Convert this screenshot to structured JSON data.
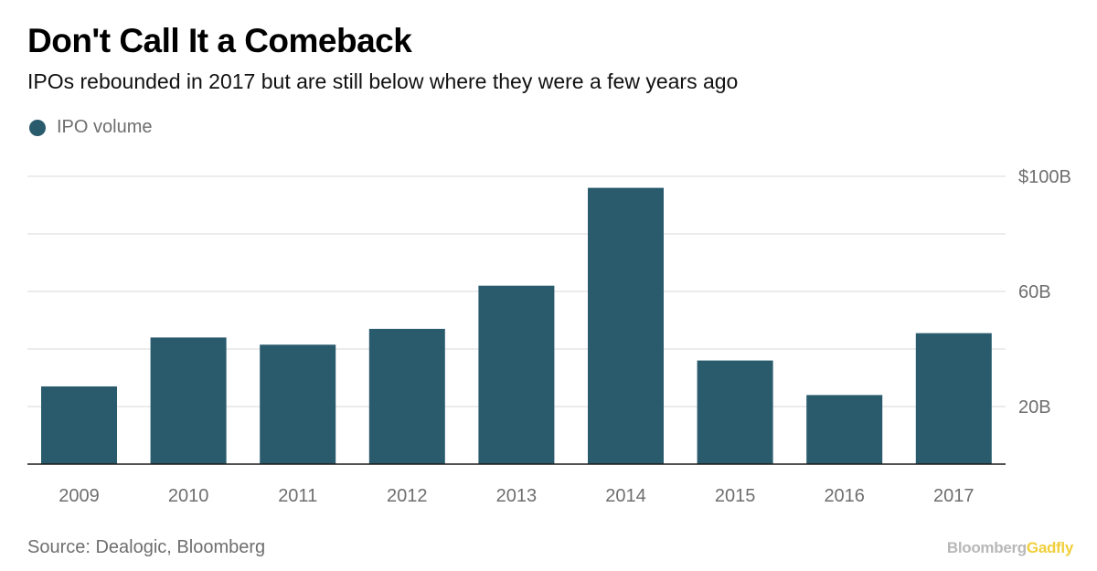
{
  "title": "Don't Call It a Comeback",
  "subtitle": "IPOs rebounded in 2017 but are still below where they were a few years ago",
  "legend": {
    "label": "IPO volume",
    "color": "#295b6d"
  },
  "source": "Source: Dealogic, Bloomberg",
  "brand": {
    "part1": "Bloomberg",
    "part2": "Gadfly"
  },
  "chart_data": {
    "type": "bar",
    "title": "Don't Call It a Comeback",
    "subtitle": "IPOs rebounded in 2017 but are still below where they were a few years ago",
    "xlabel": "",
    "ylabel": "IPO volume",
    "categories": [
      "2009",
      "2010",
      "2011",
      "2012",
      "2013",
      "2014",
      "2015",
      "2016",
      "2017"
    ],
    "series": [
      {
        "name": "IPO volume",
        "values": [
          27,
          44,
          41.5,
          47,
          62,
          96,
          36,
          24,
          45.5
        ],
        "color": "#295b6d"
      }
    ],
    "ylim": [
      0,
      100
    ],
    "yticks": [
      20,
      40,
      60,
      80,
      100
    ],
    "ytick_labels": [
      "20B",
      "",
      "60B",
      "",
      "$100B"
    ],
    "grid": true,
    "legend_position": "top-left"
  }
}
